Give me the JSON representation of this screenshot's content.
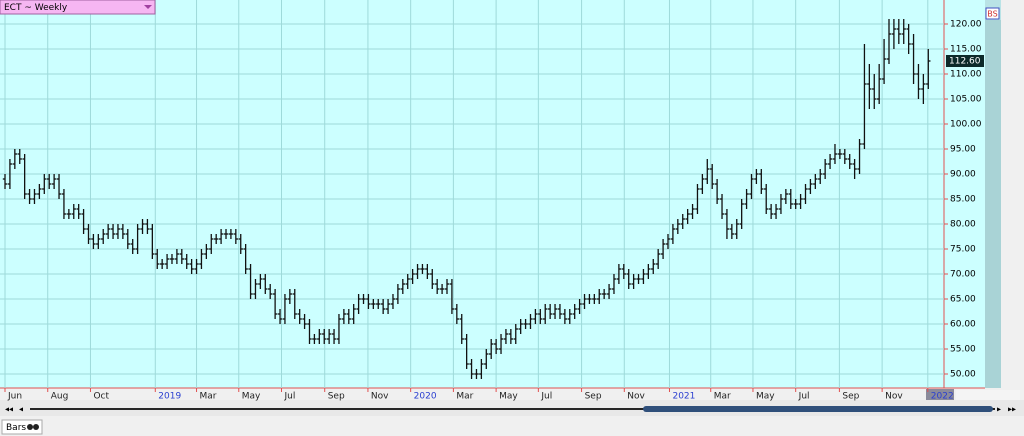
{
  "chart_data": {
    "type": "ohlc",
    "title": "ECT ~ Weekly",
    "bottom_tab": "Bars",
    "side_badge": "BS",
    "color": "#111111",
    "grid": true,
    "grid_color": "#9edada",
    "year_tick_color": "#2a3fd0",
    "xlim": [
      -1.02,
      191.2
    ],
    "ylim": [
      47.2,
      124.8
    ],
    "xticks": [
      {
        "value": 0,
        "label": "Jun"
      },
      {
        "value": 8.7,
        "label": "Aug"
      },
      {
        "value": 17.4,
        "label": "Oct"
      },
      {
        "value": 30.6,
        "label": "2019"
      },
      {
        "value": 39,
        "label": "Mar"
      },
      {
        "value": 47.6,
        "label": "May"
      },
      {
        "value": 56.3,
        "label": "Jul"
      },
      {
        "value": 65.1,
        "label": "Sep"
      },
      {
        "value": 73.9,
        "label": "Nov"
      },
      {
        "value": 82.6,
        "label": "2020"
      },
      {
        "value": 91.3,
        "label": "Mar"
      },
      {
        "value": 100,
        "label": "May"
      },
      {
        "value": 108.6,
        "label": "Jul"
      },
      {
        "value": 117.4,
        "label": "Sep"
      },
      {
        "value": 126.1,
        "label": "Nov"
      },
      {
        "value": 135.3,
        "label": "2021"
      },
      {
        "value": 143.7,
        "label": "Mar"
      },
      {
        "value": 152.3,
        "label": "May"
      },
      {
        "value": 161,
        "label": "Jul"
      },
      {
        "value": 169.9,
        "label": "Sep"
      },
      {
        "value": 178.6,
        "label": "Nov"
      },
      {
        "value": 187.9,
        "label": "2022"
      }
    ],
    "yticks": [
      {
        "value": 50,
        "label": "50.00"
      },
      {
        "value": 55,
        "label": "55.00"
      },
      {
        "value": 60,
        "label": "60.00"
      },
      {
        "value": 65,
        "label": "65.00"
      },
      {
        "value": 70,
        "label": "70.00"
      },
      {
        "value": 75,
        "label": "75.00"
      },
      {
        "value": 80,
        "label": "80.00"
      },
      {
        "value": 85,
        "label": "85.00"
      },
      {
        "value": 90,
        "label": "90.00"
      },
      {
        "value": 95,
        "label": "95.00"
      },
      {
        "value": 100,
        "label": "100.00"
      },
      {
        "value": 105,
        "label": "105.00"
      },
      {
        "value": 110,
        "label": "110.00"
      },
      {
        "value": 115,
        "label": "115.00"
      },
      {
        "value": 120,
        "label": "120.00"
      }
    ],
    "last_price": {
      "value": 112.6,
      "label": "112.60"
    },
    "x": [
      0,
      1,
      2,
      3,
      4,
      5,
      6,
      7,
      8,
      9,
      10,
      11,
      12,
      13,
      14,
      15,
      16,
      17,
      18,
      19,
      20,
      21,
      22,
      23,
      24,
      25,
      26,
      27,
      28,
      29,
      30,
      31,
      32,
      33,
      34,
      35,
      36,
      37,
      38,
      39,
      40,
      41,
      42,
      43,
      44,
      45,
      46,
      47,
      48,
      49,
      50,
      51,
      52,
      53,
      54,
      55,
      56,
      57,
      58,
      59,
      60,
      61,
      62,
      63,
      64,
      65,
      66,
      67,
      68,
      69,
      70,
      71,
      72,
      73,
      74,
      75,
      76,
      77,
      78,
      79,
      80,
      81,
      82,
      83,
      84,
      85,
      86,
      87,
      88,
      89,
      90,
      91,
      92,
      93,
      94,
      95,
      96,
      97,
      98,
      99,
      100,
      101,
      102,
      103,
      104,
      105,
      106,
      107,
      108,
      109,
      110,
      111,
      112,
      113,
      114,
      115,
      116,
      117,
      118,
      119,
      120,
      121,
      122,
      123,
      124,
      125,
      126,
      127,
      128,
      129,
      130,
      131,
      132,
      133,
      134,
      135,
      136,
      137,
      138,
      139,
      140,
      141,
      142,
      143,
      144,
      145,
      146,
      147,
      148,
      149,
      150,
      151,
      152,
      153,
      154,
      155,
      156,
      157,
      158,
      159,
      160,
      161,
      162,
      163,
      164,
      165,
      166,
      167,
      168,
      169,
      170,
      171,
      172,
      173,
      174,
      175,
      176,
      177,
      178,
      179,
      180,
      181,
      182,
      183,
      184,
      185,
      186,
      187,
      188
    ],
    "open": [
      89,
      88,
      92,
      94,
      93,
      86,
      85,
      86,
      87,
      89,
      88,
      89,
      86,
      82,
      82,
      83,
      82,
      79,
      77,
      76,
      77,
      78,
      79,
      78,
      79,
      78,
      76,
      75,
      79,
      80,
      79,
      74,
      72,
      72,
      73,
      73,
      74,
      73,
      72,
      71,
      72,
      74,
      75,
      77,
      77,
      78,
      78,
      78,
      77,
      75,
      71,
      66,
      68,
      69,
      67,
      66,
      62,
      61,
      65,
      66,
      62,
      61,
      60,
      57,
      57,
      58,
      57,
      58,
      57,
      61,
      62,
      61,
      63,
      65,
      65,
      64,
      64,
      64,
      63,
      64,
      65,
      67,
      68,
      69,
      70,
      71,
      71,
      70,
      68,
      67,
      67,
      68,
      63,
      61,
      57,
      52,
      50,
      50,
      52,
      54,
      56,
      55,
      57,
      58,
      57,
      59,
      60,
      60,
      61,
      62,
      61,
      63,
      62,
      63,
      62,
      61,
      62,
      63,
      64,
      65,
      65,
      65,
      66,
      66,
      67,
      69,
      71,
      70,
      68,
      69,
      69,
      70,
      71,
      72,
      74,
      76,
      77,
      79,
      80,
      81,
      82,
      83,
      87,
      89,
      91,
      88,
      85,
      82,
      79,
      78,
      80,
      84,
      86,
      89,
      90,
      87,
      83,
      82,
      83,
      85,
      86,
      84,
      84,
      85,
      87,
      88,
      89,
      90,
      92,
      93,
      94,
      94,
      93,
      92,
      91,
      96,
      108,
      107,
      105,
      109,
      113,
      118,
      119,
      118,
      119,
      116,
      110,
      107,
      108
    ],
    "high": [
      90,
      93,
      95,
      95,
      94,
      87,
      87,
      88,
      90,
      90,
      90,
      90,
      87,
      83,
      84,
      84,
      83,
      80,
      78,
      78,
      79,
      80,
      80,
      80,
      80,
      79,
      77,
      80,
      81,
      81,
      80,
      75,
      73,
      74,
      74,
      75,
      75,
      74,
      73,
      73,
      75,
      76,
      78,
      78,
      79,
      79,
      79,
      79,
      78,
      76,
      72,
      69,
      70,
      70,
      68,
      67,
      63,
      66,
      67,
      67,
      63,
      62,
      61,
      58,
      59,
      59,
      59,
      59,
      62,
      63,
      63,
      64,
      66,
      66,
      66,
      65,
      65,
      65,
      65,
      66,
      68,
      69,
      70,
      71,
      72,
      72,
      72,
      71,
      69,
      68,
      69,
      69,
      64,
      62,
      58,
      53,
      51,
      53,
      55,
      57,
      57,
      58,
      59,
      59,
      60,
      61,
      61,
      62,
      63,
      63,
      64,
      64,
      64,
      64,
      63,
      63,
      64,
      65,
      66,
      66,
      66,
      67,
      67,
      68,
      70,
      72,
      72,
      71,
      70,
      70,
      71,
      72,
      73,
      75,
      77,
      78,
      80,
      81,
      82,
      83,
      84,
      88,
      90,
      93,
      92,
      89,
      86,
      83,
      80,
      81,
      85,
      87,
      90,
      91,
      91,
      88,
      84,
      84,
      86,
      87,
      87,
      85,
      86,
      88,
      89,
      90,
      91,
      93,
      94,
      96,
      95,
      95,
      94,
      93,
      97,
      116,
      112,
      110,
      112,
      117,
      121,
      121,
      121,
      121,
      120,
      118,
      112,
      110,
      115
    ],
    "low": [
      87,
      87,
      91,
      92,
      85,
      84,
      84,
      85,
      86,
      87,
      87,
      85,
      81,
      81,
      81,
      81,
      78,
      76,
      75,
      75,
      76,
      77,
      77,
      77,
      77,
      75,
      74,
      74,
      78,
      78,
      73,
      71,
      71,
      71,
      72,
      72,
      72,
      71,
      70,
      70,
      71,
      73,
      74,
      76,
      76,
      77,
      77,
      76,
      74,
      70,
      65,
      65,
      67,
      66,
      65,
      61,
      60,
      60,
      64,
      61,
      60,
      59,
      56,
      56,
      56,
      56,
      56,
      56,
      56,
      60,
      60,
      60,
      62,
      64,
      63,
      63,
      63,
      62,
      62,
      63,
      64,
      66,
      67,
      68,
      69,
      70,
      69,
      67,
      66,
      66,
      66,
      62,
      60,
      56,
      51,
      49,
      49,
      49,
      51,
      53,
      54,
      54,
      56,
      56,
      56,
      58,
      59,
      59,
      60,
      60,
      60,
      61,
      61,
      61,
      60,
      60,
      61,
      62,
      63,
      64,
      64,
      64,
      65,
      65,
      66,
      68,
      69,
      67,
      67,
      68,
      68,
      69,
      70,
      71,
      73,
      75,
      76,
      78,
      79,
      80,
      81,
      82,
      86,
      88,
      87,
      84,
      81,
      77,
      77,
      77,
      79,
      83,
      85,
      88,
      86,
      82,
      81,
      81,
      82,
      84,
      83,
      83,
      83,
      84,
      86,
      87,
      88,
      89,
      91,
      92,
      93,
      92,
      91,
      89,
      90,
      95,
      103,
      103,
      104,
      108,
      112,
      115,
      116,
      116,
      114,
      108,
      105,
      104,
      107
    ],
    "close": [
      88,
      92,
      94,
      93,
      86,
      85,
      86,
      87,
      89,
      88,
      89,
      86,
      82,
      82,
      83,
      82,
      79,
      77,
      76,
      77,
      78,
      79,
      78,
      79,
      78,
      76,
      75,
      79,
      80,
      79,
      74,
      72,
      72,
      73,
      73,
      74,
      73,
      72,
      71,
      72,
      74,
      75,
      77,
      77,
      78,
      78,
      78,
      77,
      75,
      71,
      66,
      68,
      69,
      67,
      66,
      62,
      61,
      65,
      66,
      62,
      61,
      60,
      57,
      57,
      58,
      57,
      58,
      57,
      61,
      62,
      61,
      63,
      65,
      65,
      64,
      64,
      64,
      63,
      64,
      65,
      67,
      68,
      69,
      70,
      71,
      71,
      70,
      68,
      67,
      67,
      68,
      63,
      61,
      57,
      52,
      50,
      50,
      52,
      54,
      56,
      55,
      57,
      58,
      57,
      59,
      60,
      60,
      61,
      62,
      61,
      63,
      62,
      63,
      62,
      61,
      62,
      63,
      64,
      65,
      65,
      65,
      66,
      66,
      67,
      69,
      71,
      70,
      68,
      69,
      69,
      70,
      71,
      72,
      74,
      76,
      77,
      79,
      80,
      81,
      82,
      83,
      87,
      89,
      91,
      88,
      85,
      82,
      79,
      78,
      80,
      84,
      86,
      89,
      90,
      87,
      83,
      82,
      83,
      85,
      86,
      84,
      84,
      85,
      87,
      88,
      89,
      90,
      92,
      93,
      94,
      94,
      93,
      92,
      91,
      96,
      108,
      107,
      105,
      109,
      113,
      118,
      119,
      118,
      119,
      116,
      110,
      107,
      108,
      112.6
    ]
  }
}
